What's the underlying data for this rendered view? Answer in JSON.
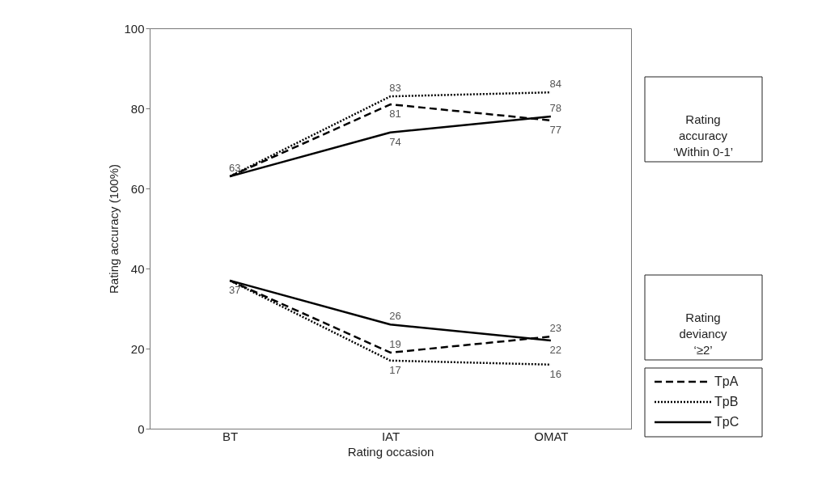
{
  "chart_data": {
    "type": "line",
    "xlabel": "Rating occasion",
    "ylabel": "Rating accuracy (100%)",
    "categories": [
      "BT",
      "IAT",
      "OMAT"
    ],
    "series": [
      {
        "name": "TpA",
        "color": "#000000",
        "line_style": "dashed",
        "values": [
          63,
          81,
          77
        ],
        "value_labels": [
          null,
          "81",
          "77"
        ]
      },
      {
        "name": "TpB",
        "color": "#000000",
        "line_style": "dotted",
        "values": [
          63,
          83,
          84
        ],
        "value_labels": [
          null,
          "83",
          "84"
        ]
      },
      {
        "name": "TpC",
        "color": "#000000",
        "line_style": "solid",
        "values": [
          63,
          74,
          78
        ],
        "value_labels": [
          "63",
          "74",
          "78"
        ]
      },
      {
        "color": "#000000",
        "line_style": "dashed",
        "values": [
          37,
          19,
          23
        ],
        "value_labels": [
          null,
          "19",
          "23"
        ]
      },
      {
        "color": "#000000",
        "line_style": "dotted",
        "values": [
          37,
          17,
          16
        ],
        "value_labels": [
          null,
          "17",
          "16"
        ]
      },
      {
        "color": "#000000",
        "line_style": "solid",
        "values": [
          37,
          26,
          22
        ],
        "value_labels": [
          "37",
          "26",
          "22"
        ]
      }
    ],
    "ylim": [
      0,
      100
    ],
    "yticks": [
      0,
      20,
      40,
      60,
      80,
      100
    ],
    "grid": false,
    "legend": "bottom right",
    "marker": "none",
    "annotations": [
      "Rating\naccuracy\n‘Within 0-1’",
      "Rating\ndeviancy\n‘≥2’"
    ]
  }
}
